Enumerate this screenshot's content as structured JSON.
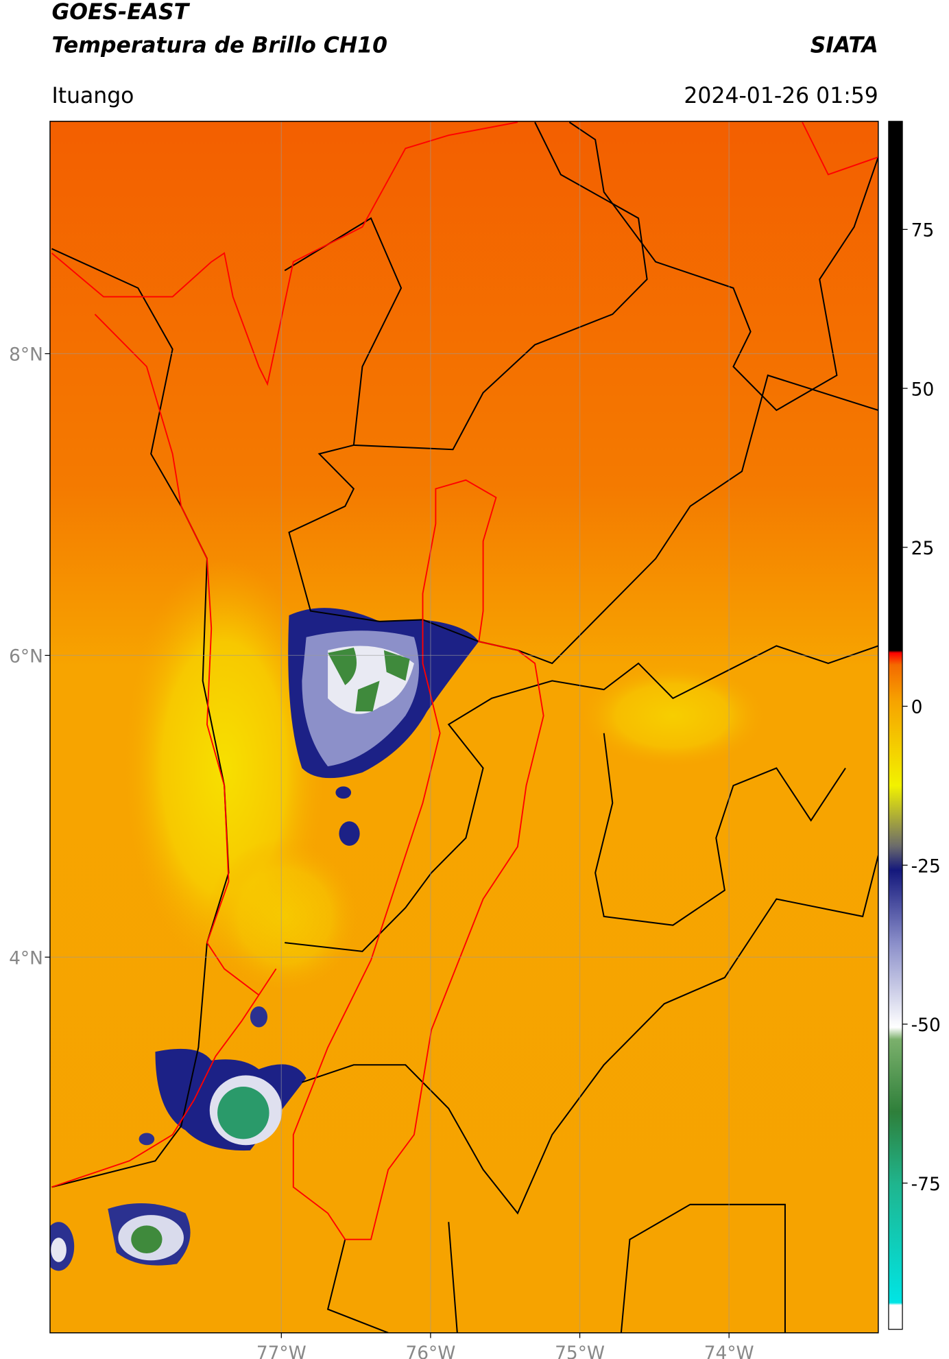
{
  "header": {
    "title": "GOES-EAST",
    "subtitle": "Temperatura de Brillo CH10",
    "source": "SIATA",
    "location": "Ituango",
    "datetime": "2024-01-26 01:59"
  },
  "map": {
    "xlim": [
      -78.55,
      -73.0
    ],
    "ylim": [
      1.51,
      9.54
    ],
    "xticks": [
      {
        "value": -77,
        "label": "77°W"
      },
      {
        "value": -76,
        "label": "76°W"
      },
      {
        "value": -75,
        "label": "75°W"
      },
      {
        "value": -74,
        "label": "74°W"
      }
    ],
    "yticks": [
      {
        "value": 8,
        "label": "8°N"
      },
      {
        "value": 6,
        "label": "6°N"
      },
      {
        "value": 4,
        "label": "4°N"
      }
    ],
    "grid": true
  },
  "colorbar": {
    "lim": [
      -98,
      92
    ],
    "ticks": [
      75,
      50,
      25,
      0,
      -25,
      -50,
      -75
    ]
  }
}
